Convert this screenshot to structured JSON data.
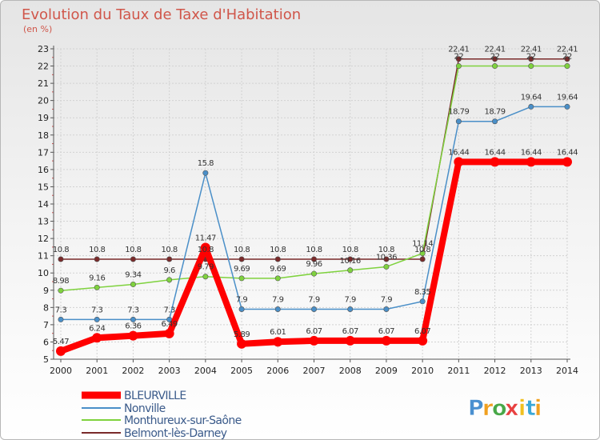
{
  "chart_data": {
    "type": "line",
    "title": "Evolution du Taux de Taxe d'Habitation",
    "ylabel": "(en %)",
    "xlabel": "",
    "x": [
      "2000",
      "2001",
      "2002",
      "2003",
      "2004",
      "2005",
      "2006",
      "2007",
      "2008",
      "2009",
      "2010",
      "2011",
      "2012",
      "2013",
      "2014"
    ],
    "ylim": [
      5,
      23
    ],
    "yticks": [
      "5",
      "6",
      "7",
      "8",
      "9",
      "10",
      "11",
      "12",
      "13",
      "14",
      "15",
      "16",
      "17",
      "18",
      "19",
      "20",
      "21",
      "22",
      "23"
    ],
    "grid": true,
    "legend_position": "bottom-left",
    "series": [
      {
        "name": "BLEURVILLE",
        "color": "#ff0000",
        "values": [
          5.47,
          6.24,
          6.36,
          6.49,
          11.47,
          5.89,
          6.01,
          6.07,
          6.07,
          6.07,
          6.07,
          16.44,
          16.44,
          16.44,
          16.44
        ],
        "labels": [
          "5.47",
          "6.24",
          "6.36",
          "6.49",
          "11.47",
          "5.89",
          "6.01",
          "6.07",
          "6.07",
          "6.07",
          "6.07",
          "16.44",
          "16.44",
          "16.44",
          "16.44"
        ]
      },
      {
        "name": "Nonville",
        "color": "#4a8fc8",
        "values": [
          7.3,
          7.3,
          7.3,
          7.3,
          15.8,
          7.9,
          7.9,
          7.9,
          7.9,
          7.9,
          8.35,
          18.79,
          18.79,
          19.64,
          19.64
        ],
        "labels": [
          "7.3",
          "7.3",
          "7.3",
          "7.3",
          "15.8",
          "7.9",
          "7.9",
          "7.9",
          "7.9",
          "7.9",
          "8.35",
          "18.79",
          "18.79",
          "19.64",
          "19.64"
        ]
      },
      {
        "name": "Monthureux-sur-Saône",
        "color": "#7fd23e",
        "values": [
          8.98,
          9.16,
          9.34,
          9.6,
          9.79,
          9.69,
          9.69,
          9.96,
          10.16,
          10.36,
          11.14,
          22,
          22,
          22,
          22
        ],
        "labels": [
          "8.98",
          "9.16",
          "9.34",
          "9.6",
          "9.79",
          "9.69",
          "9.69",
          "9.96",
          "10.16",
          "10.36",
          "11.14",
          "22",
          "22",
          "22",
          "22"
        ]
      },
      {
        "name": "Belmont-lès-Darney",
        "color": "#7a2a2a",
        "values": [
          10.8,
          10.8,
          10.8,
          10.8,
          10.8,
          10.8,
          10.8,
          10.8,
          10.8,
          10.8,
          10.8,
          22.41,
          22.41,
          22.41,
          22.41
        ],
        "labels": [
          "10.8",
          "10.8",
          "10.8",
          "10.8",
          "10.8",
          "10.8",
          "10.8",
          "10.8",
          "10.8",
          "10.8",
          "10.8",
          "22.41",
          "22.41",
          "22.41",
          "22.41"
        ]
      }
    ]
  },
  "brand": {
    "letters": [
      "P",
      "r",
      "o",
      "x",
      "i",
      "t",
      "i"
    ],
    "colors": [
      "#4a90d0",
      "#f0a020",
      "#48a848",
      "#e84040",
      "#f0c020",
      "#3aa8d8",
      "#f0a020"
    ]
  }
}
